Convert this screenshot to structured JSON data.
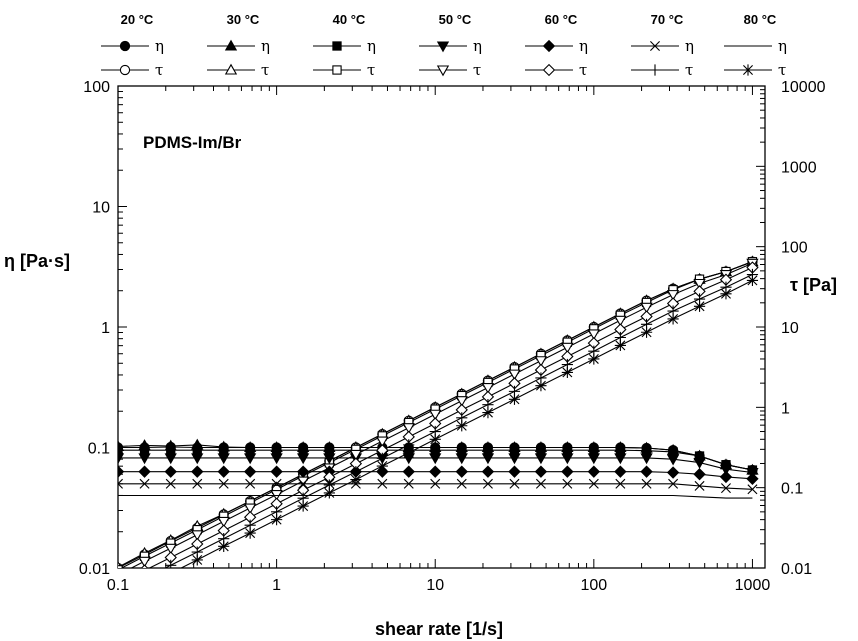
{
  "chart_data": {
    "type": "line",
    "annotation": "PDMS-Im/Br",
    "xlabel": "shear rate [1/s]",
    "ylabel_left": "η [Pa·s]",
    "ylabel_right": "τ [Pa]",
    "x_scale": "log",
    "y_scale": "log",
    "xlim": [
      0.1,
      1200
    ],
    "ylim_left": [
      0.01,
      100
    ],
    "ylim_right": [
      0.01,
      10000
    ],
    "x_ticks": [
      "0.1",
      "1",
      "10",
      "100",
      "1000"
    ],
    "y_left_ticks": [
      "0.01",
      "0.1",
      "1",
      "10",
      "100"
    ],
    "y_right_ticks": [
      "0.01",
      "0.1",
      "1",
      "10",
      "100",
      "1000",
      "10000"
    ],
    "grid": false,
    "legend_position": "top",
    "x": [
      0.1,
      0.147,
      0.215,
      0.316,
      0.464,
      0.681,
      1,
      1.47,
      2.15,
      3.16,
      4.64,
      6.81,
      10,
      14.7,
      21.5,
      31.6,
      46.4,
      68.1,
      100,
      147,
      215,
      316,
      464,
      681,
      1000
    ],
    "series": [
      {
        "temperature": "20 °C",
        "symbol": "η",
        "marker": "circle-filled",
        "axis": "left",
        "values": [
          0.1,
          0.1,
          0.101,
          0.1,
          0.1,
          0.1,
          0.1,
          0.1,
          0.1,
          0.1,
          0.1,
          0.1,
          0.1,
          0.1,
          0.1,
          0.1,
          0.1,
          0.1,
          0.1,
          0.1,
          0.099,
          0.095,
          0.085,
          0.072,
          0.065
        ]
      },
      {
        "temperature": "20 °C",
        "symbol": "τ",
        "marker": "circle-open",
        "axis": "right",
        "values": [
          0.01,
          0.0147,
          0.0217,
          0.0316,
          0.0464,
          0.068,
          0.1,
          0.147,
          0.215,
          0.316,
          0.464,
          0.681,
          1.0,
          1.47,
          2.15,
          3.16,
          4.64,
          6.81,
          10.0,
          14.7,
          21.3,
          30.0,
          39.4,
          49.0,
          65.0
        ]
      },
      {
        "temperature": "30 °C",
        "symbol": "η",
        "marker": "triangle-up-filled",
        "axis": "left",
        "values": [
          0.102,
          0.104,
          0.103,
          0.105,
          0.101,
          0.1,
          0.1,
          0.1,
          0.1,
          0.1,
          0.1,
          0.1,
          0.1,
          0.1,
          0.1,
          0.1,
          0.1,
          0.1,
          0.1,
          0.1,
          0.099,
          0.095,
          0.085,
          0.072,
          0.065
        ]
      },
      {
        "temperature": "30 °C",
        "symbol": "τ",
        "marker": "triangle-up-open",
        "axis": "right",
        "values": [
          0.0102,
          0.0153,
          0.0221,
          0.0332,
          0.0469,
          0.068,
          0.1,
          0.147,
          0.215,
          0.316,
          0.464,
          0.681,
          1.0,
          1.47,
          2.15,
          3.16,
          4.64,
          6.81,
          10.0,
          14.7,
          21.3,
          30.0,
          39.4,
          49.0,
          65.0
        ]
      },
      {
        "temperature": "40 °C",
        "symbol": "η",
        "marker": "square-filled",
        "axis": "left",
        "values": [
          0.095,
          0.095,
          0.095,
          0.095,
          0.095,
          0.095,
          0.095,
          0.095,
          0.095,
          0.095,
          0.095,
          0.095,
          0.095,
          0.095,
          0.095,
          0.095,
          0.095,
          0.095,
          0.095,
          0.095,
          0.094,
          0.092,
          0.085,
          0.072,
          0.065
        ]
      },
      {
        "temperature": "40 °C",
        "symbol": "τ",
        "marker": "square-open",
        "axis": "right",
        "values": [
          0.0095,
          0.014,
          0.0204,
          0.03,
          0.0441,
          0.0647,
          0.095,
          0.14,
          0.204,
          0.3,
          0.441,
          0.647,
          0.95,
          1.4,
          2.04,
          3.0,
          4.41,
          6.47,
          9.5,
          14.0,
          20.2,
          29.1,
          39.4,
          49.0,
          65.0
        ]
      },
      {
        "temperature": "50 °C",
        "symbol": "η",
        "marker": "triangle-down-filled",
        "axis": "left",
        "values": [
          0.082,
          0.082,
          0.082,
          0.082,
          0.082,
          0.082,
          0.082,
          0.082,
          0.082,
          0.082,
          0.082,
          0.082,
          0.082,
          0.082,
          0.082,
          0.082,
          0.082,
          0.082,
          0.082,
          0.082,
          0.082,
          0.08,
          0.075,
          0.066,
          0.062
        ]
      },
      {
        "temperature": "50 °C",
        "symbol": "τ",
        "marker": "triangle-down-open",
        "axis": "right",
        "values": [
          0.0082,
          0.0121,
          0.0176,
          0.0259,
          0.038,
          0.0558,
          0.082,
          0.121,
          0.176,
          0.259,
          0.38,
          0.558,
          0.82,
          1.21,
          1.76,
          2.59,
          3.8,
          5.58,
          8.2,
          12.1,
          17.6,
          25.3,
          34.8,
          44.9,
          62.0
        ]
      },
      {
        "temperature": "60 °C",
        "symbol": "η",
        "marker": "diamond-filled",
        "axis": "left",
        "values": [
          0.063,
          0.063,
          0.063,
          0.063,
          0.063,
          0.063,
          0.063,
          0.063,
          0.063,
          0.063,
          0.063,
          0.063,
          0.063,
          0.063,
          0.063,
          0.063,
          0.063,
          0.063,
          0.063,
          0.063,
          0.063,
          0.062,
          0.06,
          0.057,
          0.055
        ]
      },
      {
        "temperature": "60 °C",
        "symbol": "τ",
        "marker": "diamond-open",
        "axis": "right",
        "values": [
          0.0063,
          0.0093,
          0.0135,
          0.0199,
          0.0292,
          0.0429,
          0.063,
          0.093,
          0.135,
          0.199,
          0.292,
          0.429,
          0.63,
          0.93,
          1.35,
          1.99,
          2.92,
          4.29,
          6.3,
          9.3,
          13.5,
          19.6,
          27.8,
          38.8,
          55.0
        ]
      },
      {
        "temperature": "70 °C",
        "symbol": "η",
        "marker": "x",
        "axis": "left",
        "values": [
          0.05,
          0.05,
          0.05,
          0.05,
          0.05,
          0.05,
          0.05,
          0.05,
          0.05,
          0.05,
          0.05,
          0.05,
          0.05,
          0.05,
          0.05,
          0.05,
          0.05,
          0.05,
          0.05,
          0.05,
          0.05,
          0.05,
          0.048,
          0.046,
          0.045
        ]
      },
      {
        "temperature": "70 °C",
        "symbol": "τ",
        "marker": "plus",
        "axis": "right",
        "values": [
          0.005,
          0.0074,
          0.0108,
          0.0158,
          0.0232,
          0.0341,
          0.05,
          0.074,
          0.108,
          0.158,
          0.232,
          0.341,
          0.5,
          0.74,
          1.08,
          1.58,
          2.32,
          3.41,
          5.0,
          7.4,
          10.8,
          15.8,
          22.3,
          31.3,
          45.0
        ]
      },
      {
        "temperature": "80 °C",
        "symbol": "η",
        "marker": "none",
        "axis": "left",
        "values": [
          0.04,
          0.04,
          0.04,
          0.04,
          0.04,
          0.04,
          0.04,
          0.04,
          0.04,
          0.04,
          0.04,
          0.04,
          0.04,
          0.04,
          0.04,
          0.04,
          0.04,
          0.04,
          0.04,
          0.04,
          0.04,
          0.04,
          0.039,
          0.038,
          0.038
        ]
      },
      {
        "temperature": "80 °C",
        "symbol": "τ",
        "marker": "asterisk",
        "axis": "right",
        "values": [
          0.004,
          0.0059,
          0.0086,
          0.0126,
          0.0186,
          0.0272,
          0.04,
          0.059,
          0.086,
          0.126,
          0.186,
          0.272,
          0.4,
          0.59,
          0.86,
          1.26,
          1.86,
          2.72,
          4.0,
          5.9,
          8.6,
          12.6,
          18.1,
          25.9,
          38.0
        ]
      }
    ],
    "legend": [
      {
        "temperature": "20 °C",
        "eta": "η",
        "tau": "τ"
      },
      {
        "temperature": "30 °C",
        "eta": "η",
        "tau": "τ"
      },
      {
        "temperature": "40 °C",
        "eta": "η",
        "tau": "τ"
      },
      {
        "temperature": "50 °C",
        "eta": "η",
        "tau": "τ"
      },
      {
        "temperature": "60 °C",
        "eta": "η",
        "tau": "τ"
      },
      {
        "temperature": "70 °C",
        "eta": "η",
        "tau": "τ"
      },
      {
        "temperature": "80 °C",
        "eta": "η",
        "tau": "τ"
      }
    ]
  }
}
